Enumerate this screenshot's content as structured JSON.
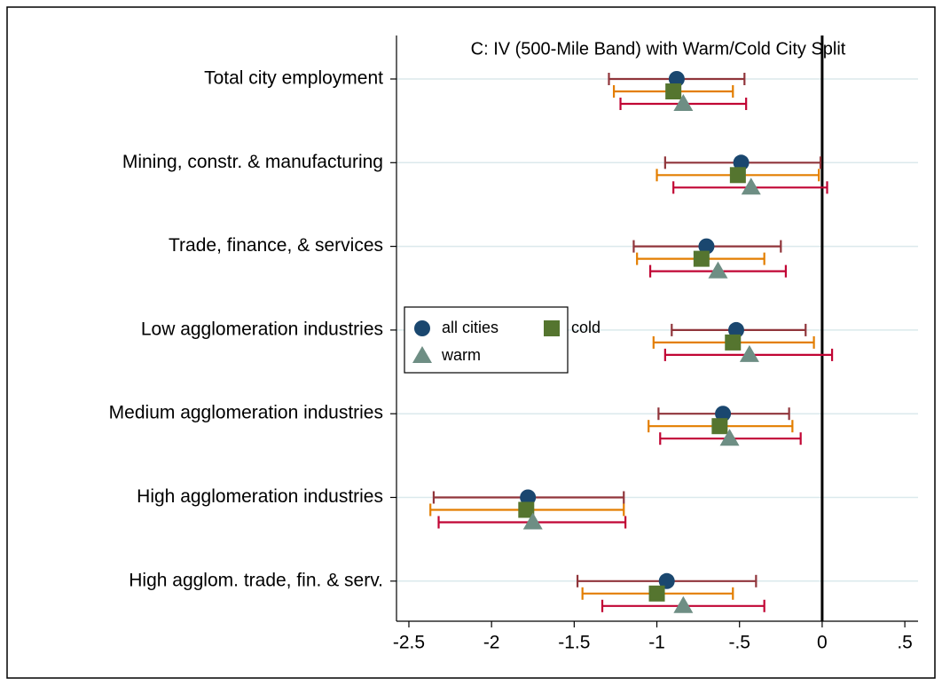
{
  "chart_data": {
    "type": "coefplot",
    "title": "C: IV (500-Mile Band) with Warm/Cold City Split",
    "categories": [
      "Total city employment",
      "Mining, constr. & manufacturing",
      "Trade, finance, & services",
      "Low agglomeration industries",
      "Medium agglomeration industries",
      "High agglomeration industries",
      "High agglom. trade, fin. & serv."
    ],
    "series": [
      {
        "name": "all cities",
        "color": "#1a476f",
        "ci_color": "#90353b",
        "marker": "circle",
        "values": [
          -0.88,
          -0.49,
          -0.7,
          -0.52,
          -0.6,
          -1.78,
          -0.94
        ],
        "ci_low": [
          -1.29,
          -0.95,
          -1.14,
          -0.91,
          -0.99,
          -2.35,
          -1.48
        ],
        "ci_high": [
          -0.47,
          -0.01,
          -0.25,
          -0.1,
          -0.2,
          -1.2,
          -0.4
        ]
      },
      {
        "name": "cold",
        "color": "#55752f",
        "ci_color": "#e37e00",
        "marker": "square",
        "values": [
          -0.9,
          -0.51,
          -0.73,
          -0.54,
          -0.62,
          -1.79,
          -1.0
        ],
        "ci_low": [
          -1.26,
          -1.0,
          -1.12,
          -1.02,
          -1.05,
          -2.37,
          -1.45
        ],
        "ci_high": [
          -0.54,
          -0.02,
          -0.35,
          -0.05,
          -0.18,
          -1.2,
          -0.54
        ]
      },
      {
        "name": "warm",
        "color": "#6e8e84",
        "ci_color": "#c10534",
        "marker": "triangle",
        "values": [
          -0.84,
          -0.43,
          -0.63,
          -0.44,
          -0.56,
          -1.75,
          -0.84
        ],
        "ci_low": [
          -1.22,
          -0.9,
          -1.04,
          -0.95,
          -0.98,
          -2.32,
          -1.33
        ],
        "ci_high": [
          -0.46,
          0.03,
          -0.22,
          0.06,
          -0.13,
          -1.19,
          -0.35
        ]
      }
    ],
    "xlim": [
      -2.575,
      0.58
    ],
    "xticks": [
      -2.5,
      -2,
      -1.5,
      -1,
      {
        "value": -0.5,
        "label": "-.5"
      },
      0,
      {
        "value": 0.5,
        "label": ".5"
      }
    ],
    "xline": 0,
    "grid": true,
    "legend": "left"
  }
}
